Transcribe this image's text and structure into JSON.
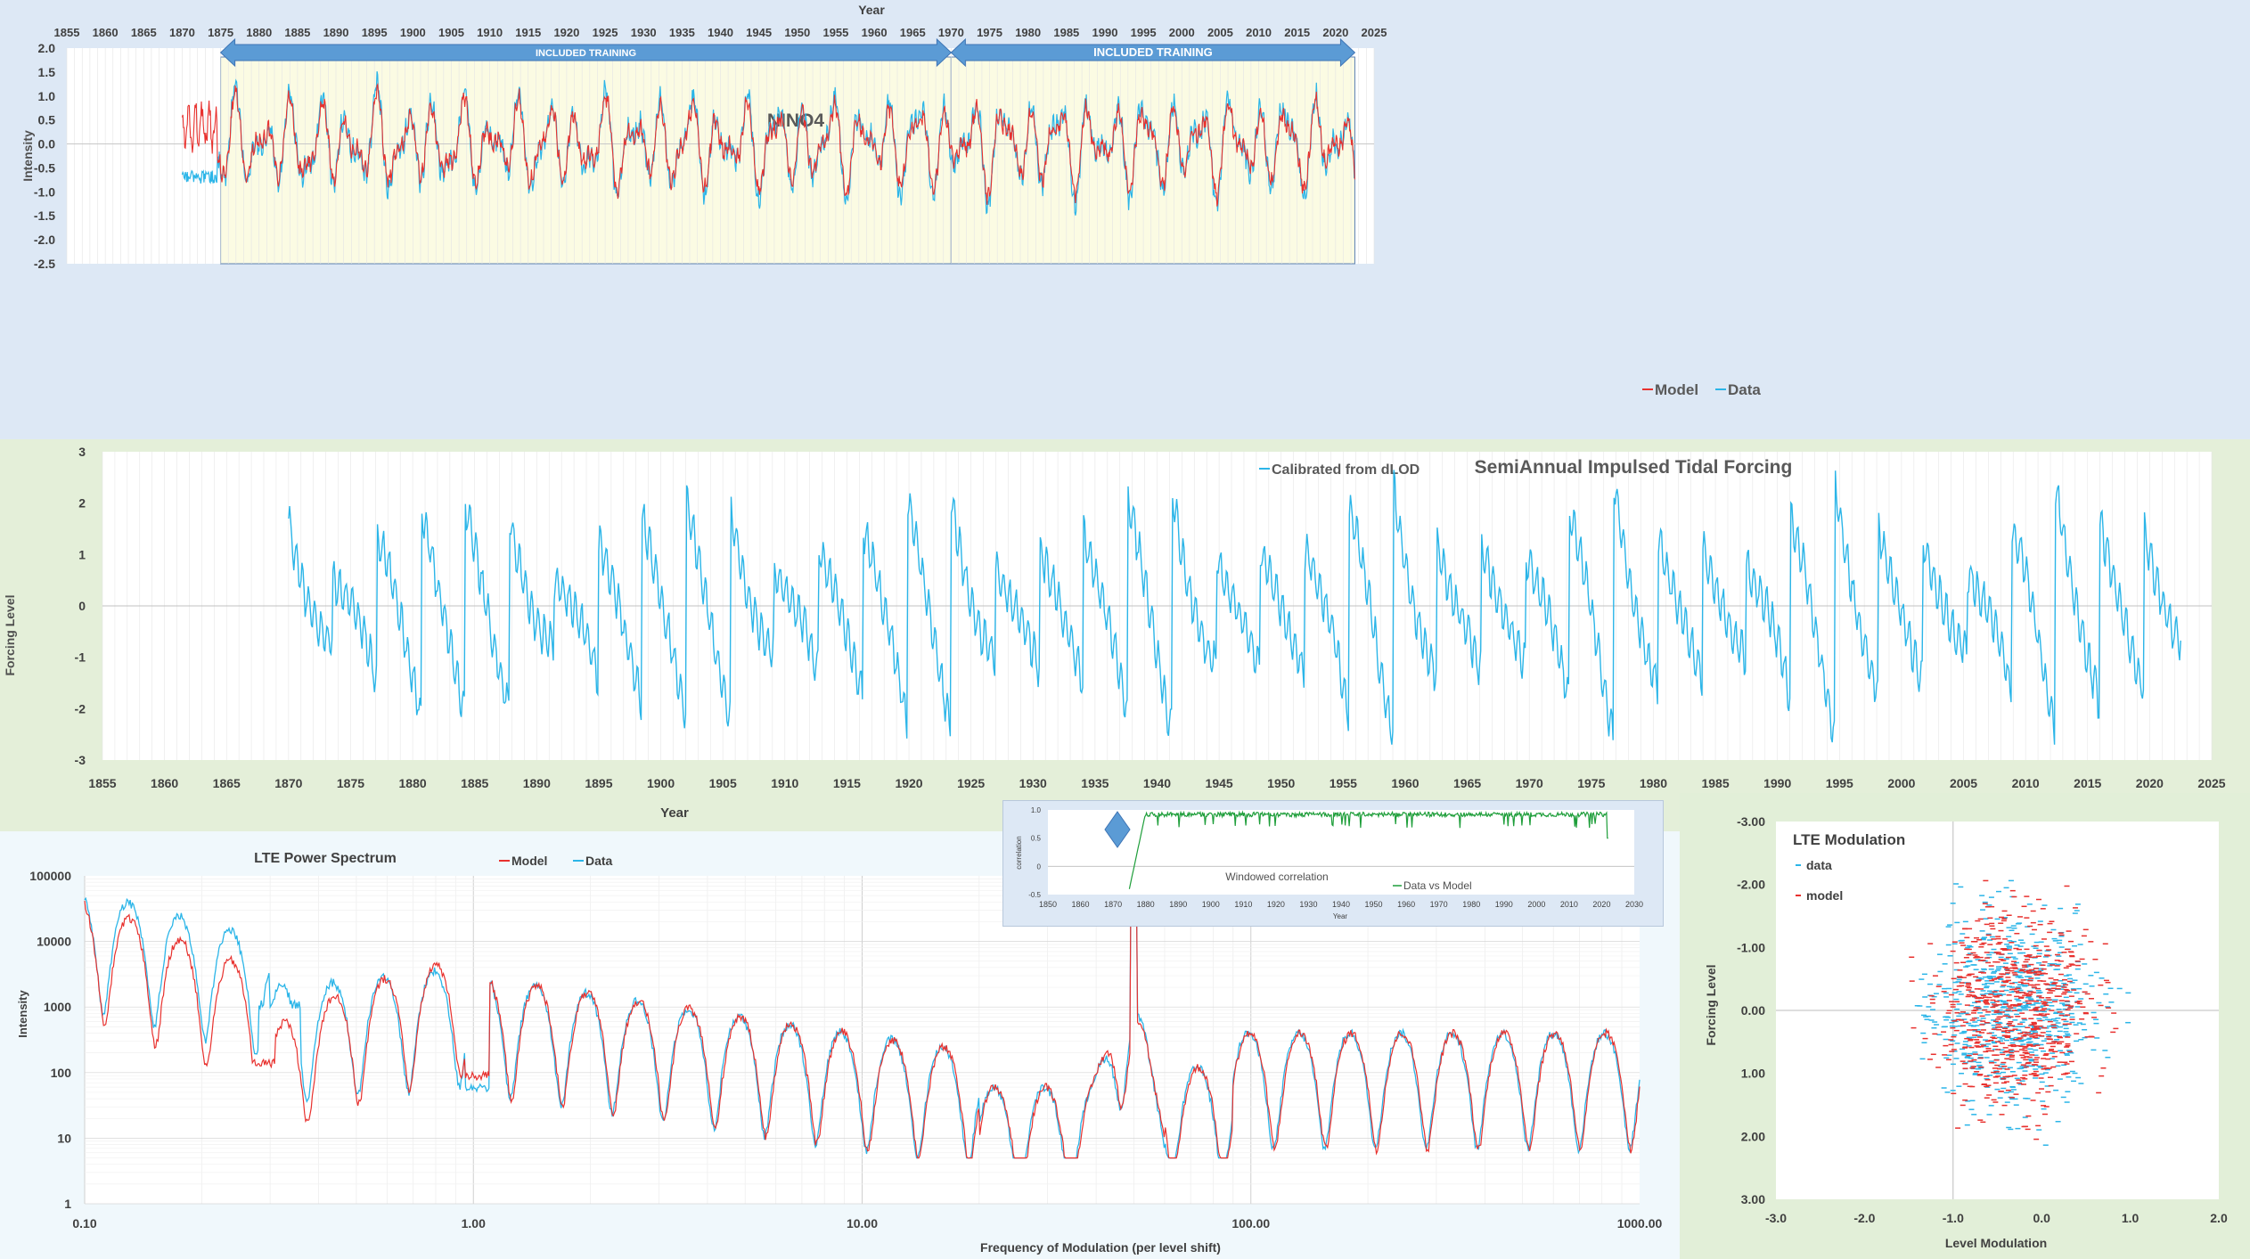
{
  "chart_data": [
    {
      "type": "line",
      "id": "nino4",
      "title": "NINO4",
      "xlabel": "Year",
      "ylabel": "Intensity",
      "xlim": [
        1855,
        2025
      ],
      "ylim": [
        -2.5,
        2.0
      ],
      "x_ticks": [
        "1855",
        "1860",
        "1865",
        "1870",
        "1875",
        "1880",
        "1885",
        "1890",
        "1895",
        "1900",
        "1905",
        "1910",
        "1915",
        "1920",
        "1925",
        "1930",
        "1935",
        "1940",
        "1945",
        "1950",
        "1955",
        "1960",
        "1965",
        "1970",
        "1975",
        "1980",
        "1985",
        "1990",
        "1995",
        "2000",
        "2005",
        "2010",
        "2015",
        "2020",
        "2025"
      ],
      "y_ticks": [
        "2.0",
        "1.5",
        "1.0",
        "0.5",
        "0.0",
        "-0.5",
        "-1.0",
        "-1.5",
        "-2.0",
        "-2.5"
      ],
      "annotations": [
        "INCLUDED TRAINING",
        "INCLUDED TRAINING"
      ],
      "training_spans": [
        [
          1875,
          1970
        ],
        [
          1970,
          2022.5
        ]
      ],
      "legend": "bottom-right",
      "series": [
        {
          "name": "Model",
          "color": "#e8312e",
          "x_start": 1870,
          "x_end": 2022.5
        },
        {
          "name": "Data",
          "color": "#2bb5e8",
          "x_start": 1870,
          "x_end": 2022.5
        }
      ]
    },
    {
      "type": "line",
      "id": "forcing",
      "title": "SemiAnnual Impulsed Tidal Forcing",
      "xlabel": "Year",
      "ylabel": "Forcing Level",
      "xlim": [
        1855,
        2025
      ],
      "ylim": [
        -3,
        3
      ],
      "x_ticks": [
        "1855",
        "1860",
        "1865",
        "1870",
        "1875",
        "1880",
        "1885",
        "1890",
        "1895",
        "1900",
        "1905",
        "1910",
        "1915",
        "1920",
        "1925",
        "1930",
        "1935",
        "1940",
        "1945",
        "1950",
        "1955",
        "1960",
        "1965",
        "1970",
        "1975",
        "1980",
        "1985",
        "1990",
        "1995",
        "2000",
        "2005",
        "2010",
        "2015",
        "2020",
        "2025"
      ],
      "y_ticks": [
        "3",
        "2",
        "1",
        "0",
        "-1",
        "-2",
        "-3"
      ],
      "legend": "top",
      "series": [
        {
          "name": "Calibrated from dLOD",
          "color": "#2bb5e8",
          "x_start": 1870,
          "x_end": 2022.5
        }
      ]
    },
    {
      "type": "line",
      "id": "spectrum",
      "title": "LTE Power Spectrum",
      "xlabel": "Frequency of Modulation (per level shift)",
      "ylabel": "Intensity",
      "x_scale": "log",
      "y_scale": "log",
      "xlim": [
        0.1,
        1000
      ],
      "ylim": [
        1,
        100000
      ],
      "x_ticks": [
        "0.10",
        "1.00",
        "10.00",
        "100.00",
        "1000.00"
      ],
      "y_ticks": [
        "100000",
        "10000",
        "1000",
        "100",
        "10",
        "1"
      ],
      "legend": "top",
      "series": [
        {
          "name": "Model",
          "color": "#e8312e"
        },
        {
          "name": "Data",
          "color": "#2bb5e8"
        }
      ]
    },
    {
      "type": "line",
      "id": "windowed-correlation",
      "title": "Windowed correlation",
      "xlabel": "Year",
      "ylabel": "correlation",
      "xlim": [
        1850,
        2030
      ],
      "ylim": [
        -0.5,
        1.0
      ],
      "x_ticks": [
        "1850",
        "1860",
        "1870",
        "1880",
        "1890",
        "1900",
        "1910",
        "1920",
        "1930",
        "1940",
        "1950",
        "1960",
        "1970",
        "1980",
        "1990",
        "2000",
        "2010",
        "2020",
        "2030"
      ],
      "y_ticks": [
        "1.0",
        "0.5",
        "0",
        "-0.5"
      ],
      "legend": "bottom-right",
      "series": [
        {
          "name": "Data vs Model",
          "color": "#1e9e3a",
          "x_start": 1875,
          "x_end": 2022
        }
      ]
    },
    {
      "type": "scatter",
      "id": "lte-modulation",
      "title": "LTE Modulation",
      "xlabel": "Level Modulation",
      "ylabel": "Forcing Level",
      "xlim": [
        -3.0,
        2.0
      ],
      "ylim": [
        -3.0,
        3.0
      ],
      "y_axis_reversed": true,
      "x_ticks": [
        "-3.0",
        "-2.0",
        "-1.0",
        "0.0",
        "1.0",
        "2.0"
      ],
      "y_ticks": [
        "-3.00",
        "-2.00",
        "-1.00",
        "0.00",
        "1.00",
        "2.00",
        "3.00"
      ],
      "legend": "top-left",
      "series": [
        {
          "name": "data",
          "color": "#2bb5e8"
        },
        {
          "name": "model",
          "color": "#e8312e"
        }
      ]
    }
  ],
  "colors": {
    "model": "#e8312e",
    "data": "#2bb5e8",
    "training_fill": "#fbfbe3",
    "arrow": "#5b9bd5",
    "correlation": "#1e9e3a"
  }
}
